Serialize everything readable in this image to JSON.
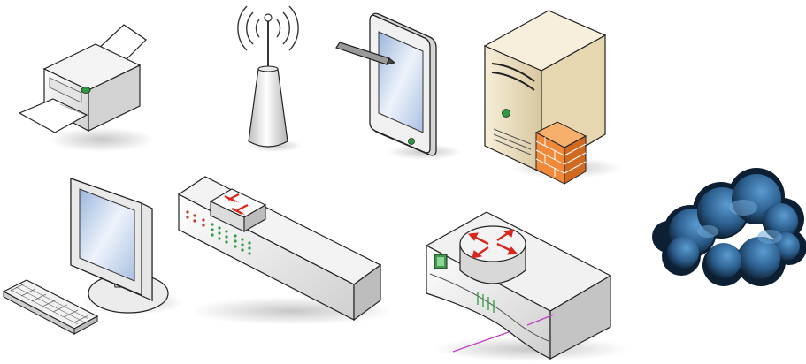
{
  "diagram": {
    "background": "#ffffff",
    "devices": [
      {
        "id": "printer",
        "icon": "printer-icon"
      },
      {
        "id": "wireless-access-point",
        "icon": "antenna-icon"
      },
      {
        "id": "tablet",
        "icon": "tablet-stylus-icon"
      },
      {
        "id": "firewall-server",
        "icon": "server-firewall-icon"
      },
      {
        "id": "workstation",
        "icon": "monitor-keyboard-icon"
      },
      {
        "id": "switch",
        "icon": "network-switch-icon"
      },
      {
        "id": "router",
        "icon": "router-icon"
      },
      {
        "id": "internet-cloud",
        "icon": "cloud-icon"
      }
    ],
    "colors": {
      "device_body": "#e8e8e8",
      "device_outline": "#222222",
      "server_beige": "#efe3c4",
      "firewall_orange": "#f08a3a",
      "router_red": "#d9261c",
      "cloud_blue": "#2e6a9e",
      "cloud_dark": "#0d1f33",
      "screen_blue": "#c9d9ee",
      "led_green": "#2e9b40",
      "led_red": "#c0392b",
      "cable_magenta": "#c040c0"
    }
  }
}
